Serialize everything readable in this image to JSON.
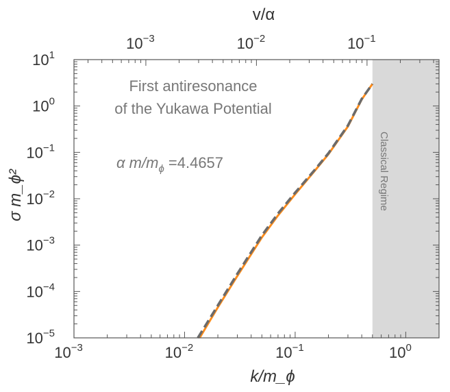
{
  "chart_data": {
    "type": "line",
    "xscale": "log",
    "yscale": "log",
    "xlim": [
      0.001,
      2.0
    ],
    "ylim": [
      1e-05,
      10
    ],
    "xlabel": "k/m_ϕ",
    "ylabel": "σ m_ϕ²",
    "top_axis_label": "v/α",
    "x_ticks": [
      {
        "base": "10",
        "exp": "−3",
        "value": 0.001
      },
      {
        "base": "10",
        "exp": "−2",
        "value": 0.01
      },
      {
        "base": "10",
        "exp": "−1",
        "value": 0.1
      },
      {
        "base": "10",
        "exp": "0",
        "value": 1
      }
    ],
    "top_ticks": [
      {
        "base": "10",
        "exp": "−3",
        "value": 0.001
      },
      {
        "base": "10",
        "exp": "−2",
        "value": 0.01
      },
      {
        "base": "10",
        "exp": "−1",
        "value": 0.1
      }
    ],
    "top_axis_scale_factor": 4.4657,
    "y_ticks": [
      {
        "base": "10",
        "exp": "1",
        "value": 10
      },
      {
        "base": "10",
        "exp": "0",
        "value": 1
      },
      {
        "base": "10",
        "exp": "−1",
        "value": 0.1
      },
      {
        "base": "10",
        "exp": "−2",
        "value": 0.01
      },
      {
        "base": "10",
        "exp": "−3",
        "value": 0.001
      },
      {
        "base": "10",
        "exp": "−4",
        "value": 0.0001
      },
      {
        "base": "10",
        "exp": "−5",
        "value": 1e-05
      }
    ],
    "annotation_lines": [
      "First antiresonance",
      "of the Yukawa Potential"
    ],
    "param_annotation": {
      "lhs": "α m/m",
      "sub": "ϕ",
      "rhs": " =4.4657"
    },
    "shaded_region": {
      "x_from": 0.5,
      "x_to": 2.0,
      "label": "Classical Regime",
      "color": "#d9d9d9"
    },
    "series": [
      {
        "color": "#ff8c1a",
        "style": "solid",
        "x": [
          0.0137,
          0.02,
          0.03,
          0.05,
          0.07,
          0.1,
          0.15,
          0.2,
          0.3,
          0.4,
          0.5
        ],
        "y": [
          1e-05,
          4.56e-05,
          0.000216,
          0.00146,
          0.00436,
          0.0125,
          0.0398,
          0.0912,
          0.363,
          1.38,
          3.0
        ]
      },
      {
        "color": "#6b6b6b",
        "style": "dashed",
        "x": [
          0.0132,
          0.02,
          0.03,
          0.05,
          0.07,
          0.1,
          0.15,
          0.2,
          0.3,
          0.4,
          0.5
        ],
        "y": [
          1e-05,
          5.01e-05,
          0.00024,
          0.00162,
          0.0048,
          0.0135,
          0.0417,
          0.0955,
          0.38,
          1.42,
          3.0
        ]
      }
    ]
  }
}
